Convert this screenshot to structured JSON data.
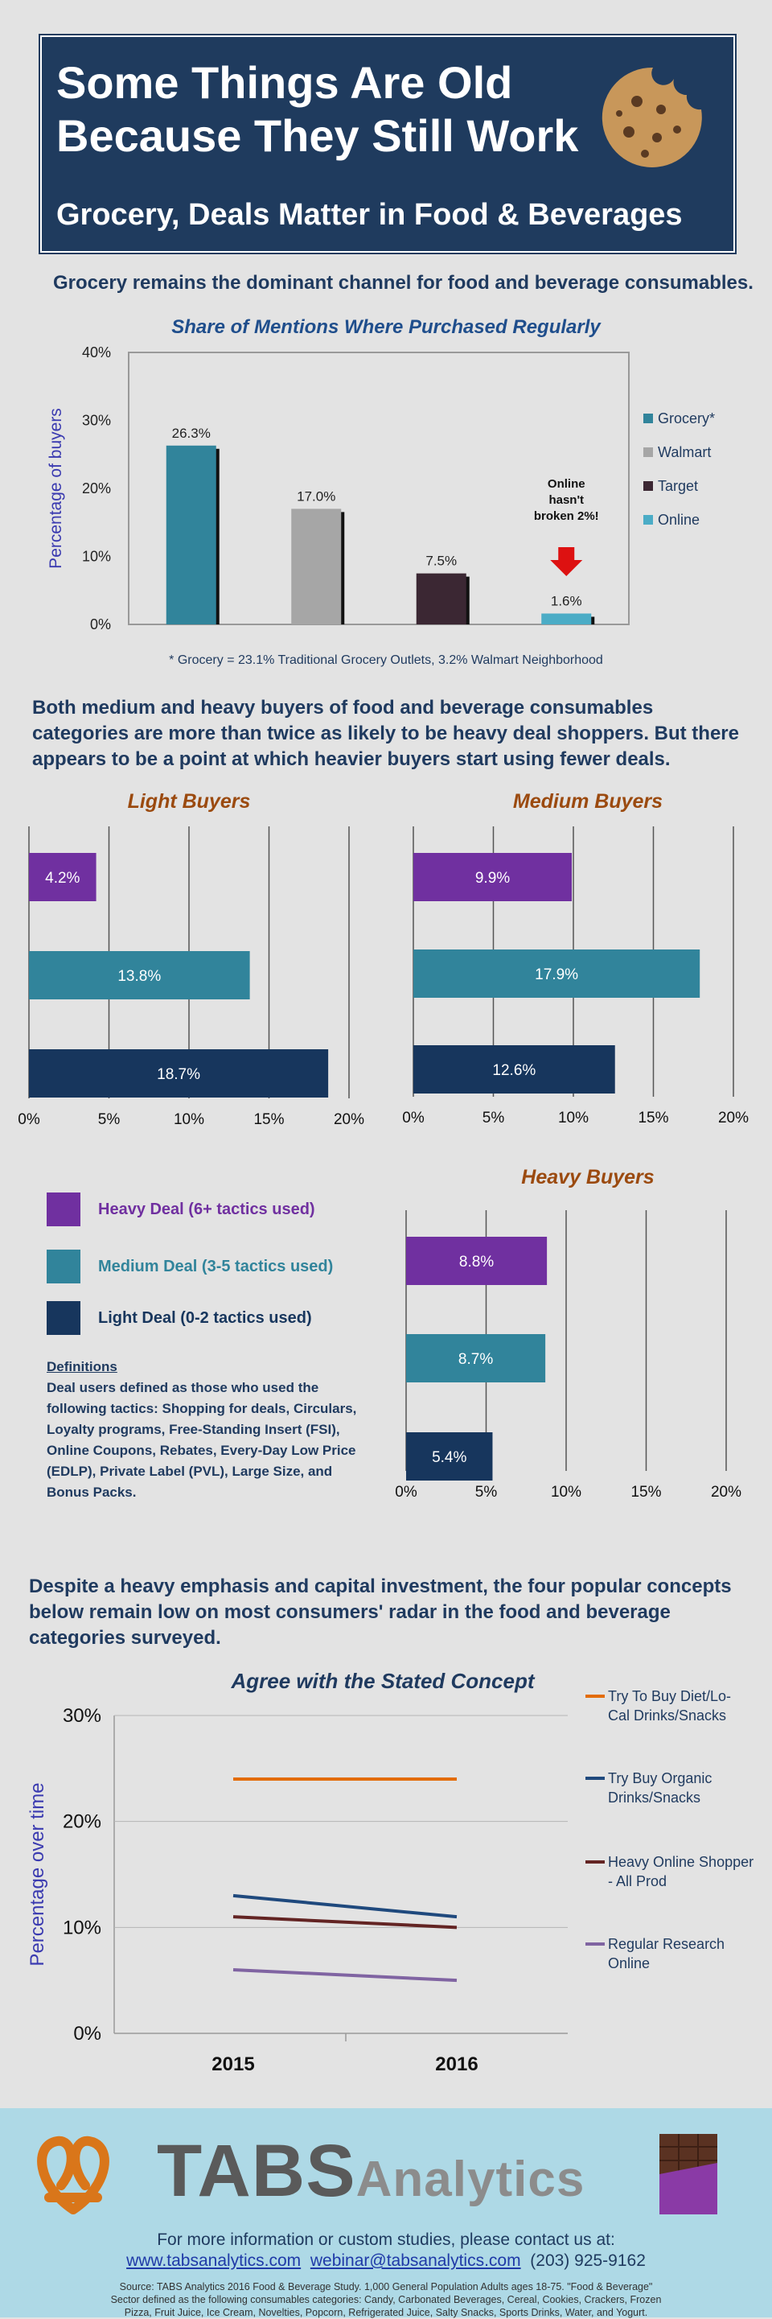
{
  "header": {
    "title_line1": "Some Things Are Old",
    "title_line2": "Because They Still Work",
    "subtitle": "Grocery, Deals Matter in Food & Beverages"
  },
  "section1": {
    "intro": "Grocery remains the dominant channel for food and beverage consumables.",
    "footnote": "* Grocery = 23.1% Traditional Grocery Outlets, 3.2% Walmart Neighborhood",
    "callout": [
      "Online",
      "hasn't",
      "broken 2%!"
    ]
  },
  "section2": {
    "intro": "Both medium and heavy buyers of food and beverage consumables categories are more than twice as likely to be heavy deal shoppers. But there appears to be a point at which heavier buyers start using fewer deals.",
    "legend": [
      {
        "label": "Heavy Deal (6+ tactics used)",
        "color": "#7030a0"
      },
      {
        "label": "Medium Deal (3-5 tactics used)",
        "color": "#31849b"
      },
      {
        "label": "Light Deal (0-2 tactics used)",
        "color": "#17365d"
      }
    ],
    "definitions_title": "Definitions",
    "definitions_lines": [
      "Deal users defined as those who used the",
      "following tactics: Shopping for deals, Circulars,",
      "Loyalty programs, Free-Standing Insert (FSI),",
      "Online Coupons, Rebates, Every-Day Low Price",
      "(EDLP), Private Label (PVL), Large Size, and",
      "Bonus Packs."
    ]
  },
  "section3": {
    "intro": "Despite a heavy emphasis and capital investment, the four popular concepts below remain low on most consumers' radar in the food and beverage categories surveyed."
  },
  "footer": {
    "brand_part1": "TABS",
    "brand_part2": "Analytics",
    "contact_line1": "For more information or custom studies, please contact us at:",
    "website": "www.tabsanalytics.com",
    "email": "webinar@tabsanalytics.com",
    "phone": "(203) 925-9162",
    "source_lines": [
      "Source: TABS Analytics 2016 Food & Beverage Study. 1,000 General Population Adults ages 18-75. \"Food & Beverage\"",
      "Sector defined as the following consumables categories: Candy, Carbonated Beverages, Cereal, Cookies, Crackers, Frozen",
      "Pizza, Fruit Juice, Ice Cream, Novelties, Popcorn, Refrigerated Juice, Salty Snacks, Sports Drinks, Water, and Yogurt."
    ]
  },
  "chart_data": [
    {
      "type": "bar",
      "title": "Share of Mentions Where Purchased Regularly",
      "ylabel": "Percentage of buyers",
      "xlabel": "",
      "categories": [
        "Grocery*",
        "Walmart",
        "Target",
        "Online"
      ],
      "values": [
        26.3,
        17.0,
        7.5,
        1.6
      ],
      "data_labels": [
        "26.3%",
        "17.0%",
        "7.5%",
        "1.6%"
      ],
      "colors": [
        "#31849b",
        "#a6a6a6",
        "#3b2733",
        "#4bacc6"
      ],
      "ylim": [
        0,
        40
      ],
      "yticks": [
        "0%",
        "10%",
        "20%",
        "30%",
        "40%"
      ],
      "legend": "right"
    },
    {
      "type": "bar",
      "orientation": "horizontal",
      "title": "Light Buyers",
      "categories": [
        "Heavy Deal (6+ tactics used)",
        "Medium Deal (3-5 tactics used)",
        "Light Deal (0-2 tactics used)"
      ],
      "values": [
        4.2,
        13.8,
        18.7
      ],
      "data_labels": [
        "4.2%",
        "13.8%",
        "18.7%"
      ],
      "xlim": [
        0,
        20
      ],
      "xticks": [
        "0%",
        "5%",
        "10%",
        "15%",
        "20%"
      ]
    },
    {
      "type": "bar",
      "orientation": "horizontal",
      "title": "Medium Buyers",
      "categories": [
        "Heavy Deal (6+ tactics used)",
        "Medium Deal (3-5 tactics used)",
        "Light Deal (0-2 tactics used)"
      ],
      "values": [
        9.9,
        17.9,
        12.6
      ],
      "data_labels": [
        "9.9%",
        "17.9%",
        "12.6%"
      ],
      "xlim": [
        0,
        20
      ],
      "xticks": [
        "0%",
        "5%",
        "10%",
        "15%",
        "20%"
      ]
    },
    {
      "type": "bar",
      "orientation": "horizontal",
      "title": "Heavy Buyers",
      "categories": [
        "Heavy Deal (6+ tactics used)",
        "Medium Deal (3-5 tactics used)",
        "Light Deal (0-2 tactics used)"
      ],
      "values": [
        8.8,
        8.7,
        5.4
      ],
      "data_labels": [
        "8.8%",
        "8.7%",
        "5.4%"
      ],
      "xlim": [
        0,
        20
      ],
      "xticks": [
        "0%",
        "5%",
        "10%",
        "15%",
        "20%"
      ]
    },
    {
      "type": "line",
      "title": "Agree with the Stated Concept",
      "ylabel": "Percentage over time",
      "x": [
        "2015",
        "2016"
      ],
      "ylim": [
        0,
        30
      ],
      "yticks": [
        "0%",
        "10%",
        "20%",
        "30%"
      ],
      "legend": "right",
      "series": [
        {
          "name": "Try To Buy Diet/Lo-Cal Drinks/Snacks",
          "values": [
            24,
            24
          ],
          "color": "#e36c09"
        },
        {
          "name": "Try Buy Organic Drinks/Snacks",
          "values": [
            13,
            11
          ],
          "color": "#1f497d"
        },
        {
          "name": "Heavy Online Shopper - All Prod",
          "values": [
            11,
            10
          ],
          "color": "#632423"
        },
        {
          "name": "Regular Research Online",
          "values": [
            6,
            5
          ],
          "color": "#8064a2"
        }
      ]
    }
  ]
}
